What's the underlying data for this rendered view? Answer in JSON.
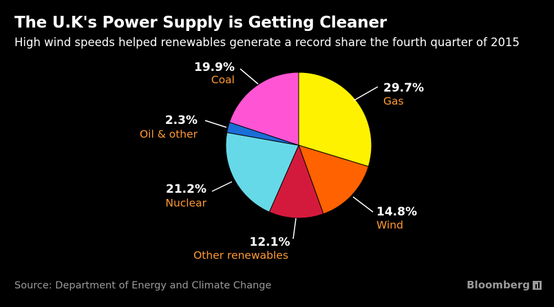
{
  "chart_data": {
    "type": "pie",
    "title": "The U.K's Power Supply is Getting Cleaner",
    "subtitle": "High wind speeds helped renewables generate a record share the fourth quarter of 2015",
    "slices": [
      {
        "label": "Gas",
        "value": 29.7,
        "value_label": "29.7%",
        "color": "#fff200"
      },
      {
        "label": "Wind",
        "value": 14.8,
        "value_label": "14.8%",
        "color": "#ff6200"
      },
      {
        "label": "Other renewables",
        "value": 12.1,
        "value_label": "12.1%",
        "color": "#d41a3c"
      },
      {
        "label": "Nuclear",
        "value": 21.2,
        "value_label": "21.2%",
        "color": "#66d9e8"
      },
      {
        "label": "Oil & other",
        "value": 2.3,
        "value_label": "2.3%",
        "color": "#1a6ed8"
      },
      {
        "label": "Coal",
        "value": 19.9,
        "value_label": "19.9%",
        "color": "#ff55d4"
      }
    ],
    "start_direction": "12 o'clock",
    "direction": "clockwise",
    "label_color": "#ff9933",
    "value_color": "#ffffff",
    "leader_line_color": "#ffffff"
  },
  "footer": {
    "source": "Source: Department of Energy and Climate Change",
    "brand": "Bloomberg"
  }
}
